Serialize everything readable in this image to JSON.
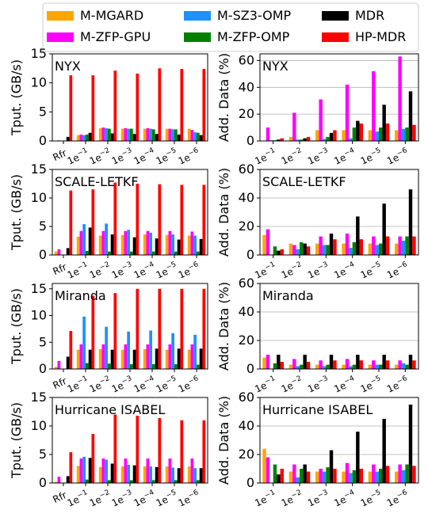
{
  "chart_data": {
    "type": "bar",
    "grid": "y-major (right column)",
    "legend": {
      "placement": "top",
      "entries": [
        {
          "label": "M-MGARD",
          "color": "#FFA500"
        },
        {
          "label": "M-ZFP-GPU",
          "color": "#FF00FF"
        },
        {
          "label": "M-SZ3-OMP",
          "color": "#1E90FF"
        },
        {
          "label": "M-ZFP-OMP",
          "color": "#008000"
        },
        {
          "label": "MDR",
          "color": "#000000"
        },
        {
          "label": "HP-MDR",
          "color": "#FF0000"
        }
      ]
    },
    "panels": [
      {
        "id": "nyx-tput",
        "title": "NYX",
        "ylabel": "Tput. (GB/s)",
        "ylim": [
          0,
          15
        ],
        "yticks": [
          0,
          5,
          10,
          15
        ],
        "grid": false,
        "categories": [
          "Rfr",
          "1e−1",
          "1e−2",
          "1e−3",
          "1e−4",
          "1e−5",
          "1e−6"
        ],
        "series": [
          {
            "name": "M-MGARD",
            "values": [
              0,
              1.0,
              2.2,
              2.1,
              2.1,
              2.1,
              2.1
            ]
          },
          {
            "name": "M-ZFP-GPU",
            "values": [
              0.1,
              1.1,
              2.3,
              2.2,
              2.2,
              2.1,
              1.9
            ]
          },
          {
            "name": "M-SZ3-OMP",
            "values": [
              0,
              1.0,
              2.2,
              2.1,
              2.1,
              2.0,
              1.5
            ]
          },
          {
            "name": "M-ZFP-OMP",
            "values": [
              0,
              1.1,
              2.1,
              2.1,
              2.0,
              2.0,
              1.4
            ]
          },
          {
            "name": "MDR",
            "values": [
              0.7,
              1.4,
              1.3,
              1.2,
              1.2,
              1.1,
              1.0
            ]
          },
          {
            "name": "HP-MDR",
            "values": [
              11.3,
              11.3,
              12.1,
              11.6,
              12.5,
              12.4,
              12.4
            ]
          }
        ]
      },
      {
        "id": "nyx-add",
        "title": "NYX",
        "ylabel": "Add. Data (%)",
        "ylim": [
          0,
          65
        ],
        "yticks": [
          0,
          20,
          40,
          60
        ],
        "grid": true,
        "categories": [
          "1e−1",
          "1e−2",
          "1e−3",
          "1e−4",
          "1e−5",
          "1e−6"
        ],
        "series": [
          {
            "name": "M-MGARD",
            "values": [
              0,
              3,
              8,
              8,
              8,
              8
            ]
          },
          {
            "name": "M-ZFP-GPU",
            "values": [
              10,
              21,
              31,
              42,
              52,
              63
            ]
          },
          {
            "name": "M-SZ3-OMP",
            "values": [
              0.5,
              1,
              1.5,
              2,
              7,
              9
            ]
          },
          {
            "name": "M-ZFP-OMP",
            "values": [
              0.5,
              1,
              3,
              10,
              10,
              10
            ]
          },
          {
            "name": "MDR",
            "values": [
              1,
              2,
              6,
              15,
              27,
              37
            ]
          },
          {
            "name": "HP-MDR",
            "values": [
              2,
              3,
              8,
              13,
              13,
              12
            ]
          }
        ]
      },
      {
        "id": "scale-tput",
        "title": "SCALE-LETKF",
        "ylabel": "Tput.  (GB/s)",
        "ylim": [
          0,
          15
        ],
        "yticks": [
          0,
          5,
          10,
          15
        ],
        "grid": false,
        "categories": [
          "Rfr",
          "1e−1",
          "1e−2",
          "1e−3",
          "1e−4",
          "1e−5",
          "1e−6"
        ],
        "series": [
          {
            "name": "M-MGARD",
            "values": [
              0.6,
              3.2,
              3.4,
              3.5,
              3.6,
              3.5,
              3.4
            ]
          },
          {
            "name": "M-ZFP-GPU",
            "values": [
              1.0,
              4.2,
              4.2,
              4.2,
              4.2,
              4.2,
              4.1
            ]
          },
          {
            "name": "M-SZ3-OMP",
            "values": [
              0,
              5.4,
              5.5,
              4.4,
              3.9,
              3.6,
              3.4
            ]
          },
          {
            "name": "M-ZFP-OMP",
            "values": [
              0,
              0.7,
              0.6,
              0.6,
              0.6,
              0.6,
              0.6
            ]
          },
          {
            "name": "MDR",
            "values": [
              1.2,
              4.8,
              3.6,
              3.1,
              2.9,
              2.7,
              2.8
            ]
          },
          {
            "name": "HP-MDR",
            "values": [
              11.3,
              11.5,
              12.7,
              12.5,
              12.4,
              12.3,
              12.3
            ]
          }
        ]
      },
      {
        "id": "scale-add",
        "title": "SCALE-LETKF",
        "ylabel": "Add. Data (%)",
        "ylim": [
          0,
          60
        ],
        "yticks": [
          0,
          20,
          40,
          60
        ],
        "grid": true,
        "categories": [
          "1e−1",
          "1e−2",
          "1e−3",
          "1e−4",
          "1e−5",
          "1e−6"
        ],
        "series": [
          {
            "name": "M-MGARD",
            "values": [
              14,
              8,
              8,
              8,
              8,
              8
            ]
          },
          {
            "name": "M-ZFP-GPU",
            "values": [
              18,
              7,
              13,
              15,
              13,
              13
            ]
          },
          {
            "name": "M-SZ3-OMP",
            "values": [
              0,
              4,
              7,
              5,
              7,
              10
            ]
          },
          {
            "name": "M-ZFP-OMP",
            "values": [
              6,
              9,
              7,
              9,
              8,
              13
            ]
          },
          {
            "name": "MDR",
            "values": [
              3,
              8,
              15,
              27,
              36,
              46
            ]
          },
          {
            "name": "HP-MDR",
            "values": [
              4,
              6,
              11,
              11,
              13,
              13
            ]
          }
        ]
      },
      {
        "id": "miranda-tput",
        "title": "Miranda",
        "ylabel": "Tput.  (GB/s)",
        "ylim": [
          0,
          16
        ],
        "yticks": [
          0,
          5,
          10,
          15
        ],
        "grid": false,
        "categories": [
          "Rfr",
          "1e−1",
          "1e−2",
          "1e−3",
          "1e−4",
          "1e−5",
          "1e−6"
        ],
        "series": [
          {
            "name": "M-MGARD",
            "values": [
              0.4,
              3.6,
              3.7,
              3.6,
              3.7,
              3.6,
              3.6
            ]
          },
          {
            "name": "M-ZFP-GPU",
            "values": [
              1.5,
              4.6,
              4.6,
              4.6,
              4.6,
              4.6,
              4.6
            ]
          },
          {
            "name": "M-SZ3-OMP",
            "values": [
              0,
              9.8,
              7.9,
              7.0,
              7.2,
              6.7,
              6.4
            ]
          },
          {
            "name": "M-ZFP-OMP",
            "values": [
              0,
              1.1,
              1.0,
              0.9,
              0.9,
              0.9,
              0.8
            ]
          },
          {
            "name": "MDR",
            "values": [
              2.3,
              3.6,
              3.6,
              3.6,
              3.8,
              3.8,
              3.8
            ]
          },
          {
            "name": "HP-MDR",
            "values": [
              7.1,
              13.7,
              14.2,
              15.0,
              15.0,
              15.0,
              15.0
            ]
          }
        ]
      },
      {
        "id": "miranda-add",
        "title": "Miranda",
        "ylabel": "Add. Data (%)",
        "ylim": [
          0,
          60
        ],
        "yticks": [
          0,
          20,
          40,
          60
        ],
        "grid": true,
        "categories": [
          "1e−1",
          "1e−2",
          "1e−3",
          "1e−4",
          "1e−5",
          "1e−6"
        ],
        "series": [
          {
            "name": "M-MGARD",
            "values": [
              8,
              3,
              3,
              3,
              3,
              3
            ]
          },
          {
            "name": "M-ZFP-GPU",
            "values": [
              10,
              7,
              6,
              7,
              6,
              6
            ]
          },
          {
            "name": "M-SZ3-OMP",
            "values": [
              0,
              2,
              2,
              2,
              3,
              4
            ]
          },
          {
            "name": "M-ZFP-OMP",
            "values": [
              4,
              3,
              3,
              3,
              3,
              3
            ]
          },
          {
            "name": "MDR",
            "values": [
              10,
              10,
              10,
              10,
              10,
              10
            ]
          },
          {
            "name": "HP-MDR",
            "values": [
              5,
              5,
              6,
              6,
              6,
              6
            ]
          }
        ]
      },
      {
        "id": "hurricane-tput",
        "title": "Hurricane ISABEL",
        "ylabel": "Tput.  (GB/s)",
        "ylim": [
          0,
          15
        ],
        "yticks": [
          0,
          5,
          10,
          15
        ],
        "grid": false,
        "categories": [
          "Rfr",
          "1e−1",
          "1e−2",
          "1e−3",
          "1e−4",
          "1e−5",
          "1e−6"
        ],
        "series": [
          {
            "name": "M-MGARD",
            "values": [
              0.2,
              3.0,
              2.8,
              2.9,
              2.9,
              2.9,
              2.9
            ]
          },
          {
            "name": "M-ZFP-GPU",
            "values": [
              1.1,
              4.3,
              4.3,
              4.3,
              4.3,
              4.3,
              4.3
            ]
          },
          {
            "name": "M-SZ3-OMP",
            "values": [
              0,
              4.6,
              4.1,
              3.2,
              2.9,
              2.7,
              2.6
            ]
          },
          {
            "name": "M-ZFP-OMP",
            "values": [
              0,
              0.6,
              0.5,
              0.5,
              0.5,
              0.5,
              0.5
            ]
          },
          {
            "name": "MDR",
            "values": [
              1.2,
              4.4,
              3.4,
              3.1,
              2.8,
              2.6,
              2.6
            ]
          },
          {
            "name": "HP-MDR",
            "values": [
              5.4,
              8.6,
              12.0,
              11.8,
              11.4,
              11.0,
              11.0
            ]
          }
        ]
      },
      {
        "id": "hurricane-add",
        "title": "Hurricane ISABEL",
        "ylabel": "Add. Data (%)",
        "ylim": [
          0,
          60
        ],
        "yticks": [
          0,
          20,
          40,
          60
        ],
        "grid": true,
        "categories": [
          "1e−1",
          "1e−2",
          "1e−3",
          "1e−4",
          "1e−5",
          "1e−6"
        ],
        "series": [
          {
            "name": "M-MGARD",
            "values": [
              24,
              8,
              8,
              8,
              8,
              8
            ]
          },
          {
            "name": "M-ZFP-GPU",
            "values": [
              18,
              13,
              10,
              14,
              13,
              13
            ]
          },
          {
            "name": "M-SZ3-OMP",
            "values": [
              0,
              4,
              8,
              7,
              8,
              9
            ]
          },
          {
            "name": "M-ZFP-OMP",
            "values": [
              13,
              10,
              11,
              9,
              10,
              13
            ]
          },
          {
            "name": "MDR",
            "values": [
              6,
              13,
              23,
              36,
              45,
              55
            ]
          },
          {
            "name": "HP-MDR",
            "values": [
              10,
              8,
              10,
              10,
              12,
              12
            ]
          }
        ]
      }
    ]
  }
}
